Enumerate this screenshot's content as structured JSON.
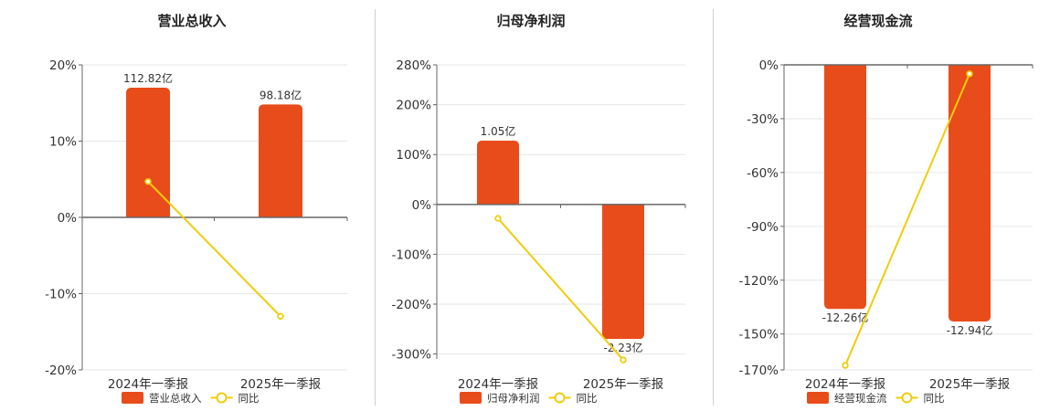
{
  "colors": {
    "bar": "#E84C1A",
    "line": "#F0CC0C",
    "grid": "#e6e6e6",
    "axis": "#666666"
  },
  "chart_data": [
    {
      "type": "bar",
      "title": "营业总收入",
      "categories": [
        "2024年一季报",
        "2025年一季报"
      ],
      "y_ticks": [
        "20%",
        "10%",
        "0%",
        "-10%",
        "-20%"
      ],
      "ylim": [
        -20,
        20
      ],
      "series": [
        {
          "name": "营业总收入",
          "type": "bar",
          "values": [
            17,
            14.8
          ],
          "labels": [
            "112.82亿",
            "98.18亿"
          ]
        },
        {
          "name": "同比",
          "type": "line",
          "values": [
            4.7,
            -12.98
          ]
        }
      ]
    },
    {
      "type": "bar",
      "title": "归母净利润",
      "categories": [
        "2024年一季报",
        "2025年一季报"
      ],
      "y_ticks": [
        "280%",
        "200%",
        "100%",
        "0%",
        "-100%",
        "-200%",
        "-300%"
      ],
      "ylim": [
        -310,
        280
      ],
      "series": [
        {
          "name": "归母净利润",
          "type": "bar",
          "values": [
            128,
            -270
          ],
          "labels": [
            "1.05亿",
            "-2.23亿"
          ]
        },
        {
          "name": "同比",
          "type": "line",
          "values": [
            -28,
            -312
          ]
        }
      ]
    },
    {
      "type": "bar",
      "title": "经营现金流",
      "categories": [
        "2024年一季报",
        "2025年一季报"
      ],
      "y_ticks": [
        "0%",
        "-30%",
        "-60%",
        "-90%",
        "-120%",
        "-150%",
        "-170%"
      ],
      "ylim": [
        -170,
        0
      ],
      "series": [
        {
          "name": "经营现金流",
          "type": "bar",
          "values": [
            -136,
            -143
          ],
          "labels": [
            "-12.26亿",
            "-12.94亿"
          ]
        },
        {
          "name": "同比",
          "type": "line",
          "values": [
            -167.5,
            -5
          ]
        }
      ]
    }
  ]
}
